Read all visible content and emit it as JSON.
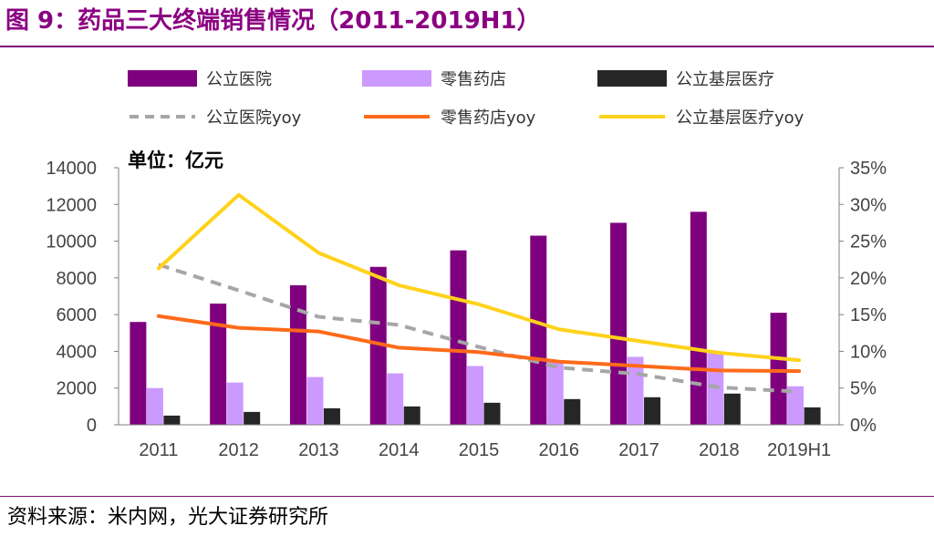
{
  "figure": {
    "label": "图 9：",
    "title": "药品三大终端销售情况（2011-2019H1）"
  },
  "source": {
    "prefix": "资料来源：",
    "text": "米内网，光大证券研究所"
  },
  "colors": {
    "title": "#8b0082",
    "rule": "#7a0a7a",
    "hospital": "#7f007f",
    "retail": "#cc99ff",
    "primary": "#262626",
    "hospital_yoy": "#a6a6a6",
    "retail_yoy": "#ff6a1a",
    "primary_yoy": "#ffd21a"
  },
  "chart_data": {
    "type": "bar",
    "unit_label": "单位：亿元",
    "categories": [
      "2011",
      "2012",
      "2013",
      "2014",
      "2015",
      "2016",
      "2017",
      "2018",
      "2019H1"
    ],
    "y_left": {
      "min": 0,
      "max": 14000,
      "ticks": [
        "0",
        "2000",
        "4000",
        "6000",
        "8000",
        "10000",
        "12000",
        "14000"
      ]
    },
    "y_right": {
      "min": 0,
      "max": 35,
      "ticks": [
        "0%",
        "5%",
        "10%",
        "15%",
        "20%",
        "25%",
        "30%",
        "35%"
      ]
    },
    "bar_series": [
      {
        "name": "公立医院",
        "color": "#7f007f",
        "values": [
          5600,
          6600,
          7600,
          8600,
          9500,
          10300,
          11000,
          11600,
          6100
        ]
      },
      {
        "name": "零售药店",
        "color": "#cc99ff",
        "values": [
          2000,
          2300,
          2600,
          2800,
          3200,
          3400,
          3700,
          3900,
          2100
        ]
      },
      {
        "name": "公立基层医疗",
        "color": "#262626",
        "values": [
          500,
          700,
          900,
          1000,
          1200,
          1400,
          1500,
          1700,
          950
        ]
      }
    ],
    "line_series": [
      {
        "name": "公立医院yoy",
        "color": "#a6a6a6",
        "dash": true,
        "values": [
          21.8,
          18.3,
          14.7,
          13.6,
          10.6,
          7.8,
          6.9,
          5.1,
          4.5
        ]
      },
      {
        "name": "零售药店yoy",
        "color": "#ff6a1a",
        "dash": false,
        "values": [
          14.8,
          13.2,
          12.7,
          10.5,
          9.9,
          8.6,
          8.0,
          7.4,
          7.3
        ]
      },
      {
        "name": "公立基层医疗yoy",
        "color": "#ffd21a",
        "dash": false,
        "values": [
          21.3,
          31.3,
          23.4,
          19.0,
          16.4,
          13.0,
          11.4,
          9.8,
          8.8
        ]
      }
    ]
  }
}
